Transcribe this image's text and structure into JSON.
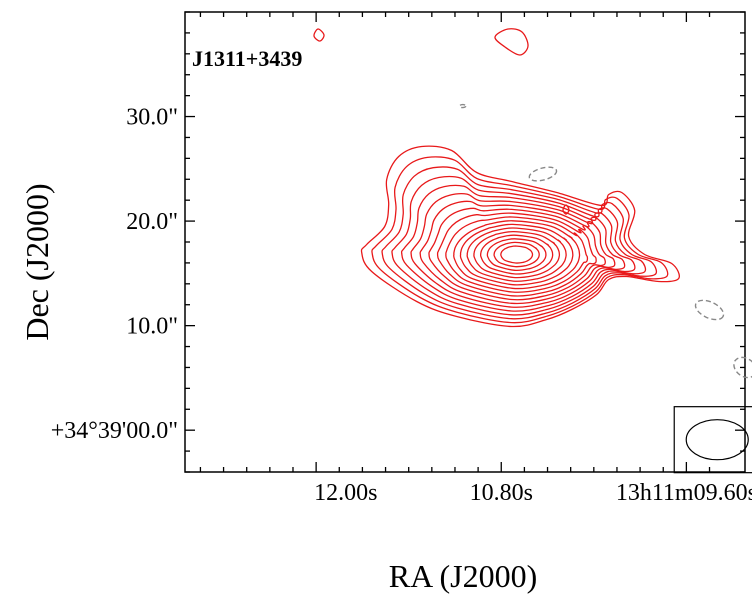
{
  "chart_data": {
    "type": "contour",
    "source_name": "J1311+3439",
    "xlabel": "RA (J2000)",
    "ylabel": "Dec (J2000)",
    "x_ticks": [
      {
        "value": 12.0,
        "label": "12.00s"
      },
      {
        "value": 10.8,
        "label": "10.80s"
      },
      {
        "value": 9.6,
        "label": "13h11m09.60s"
      }
    ],
    "y_ticks": [
      {
        "value": 30.0,
        "label": "30.0\""
      },
      {
        "value": 20.0,
        "label": "20.0\""
      },
      {
        "value": 10.0,
        "label": "10.0\""
      },
      {
        "value": 0.0,
        "label": "+34°39'00.0\""
      }
    ],
    "xlim": [
      12.85,
      9.22
    ],
    "ylim": [
      -4.0,
      40.0
    ],
    "x_direction": "decreasing-right",
    "contour_color": "#e8191a",
    "negative_contour_color": "#888888",
    "peak": {
      "ra_s": 10.7,
      "dec_arcsec": 16.8
    },
    "positive_contour_levels": 18,
    "negative_contours": [
      {
        "ra_s": 10.53,
        "dec_arcsec": 24.5
      },
      {
        "ra_s": 9.45,
        "dec_arcsec": 11.5
      },
      {
        "ra_s": 9.22,
        "dec_arcsec": 6.0
      },
      {
        "ra_s": 11.05,
        "dec_arcsec": 31.0
      }
    ],
    "beam": {
      "ra_s": 9.4,
      "dec_arcsec": -1.1,
      "major_arcsec": 6.0,
      "minor_arcsec": 3.4,
      "pa_deg": 0,
      "box": true
    }
  }
}
